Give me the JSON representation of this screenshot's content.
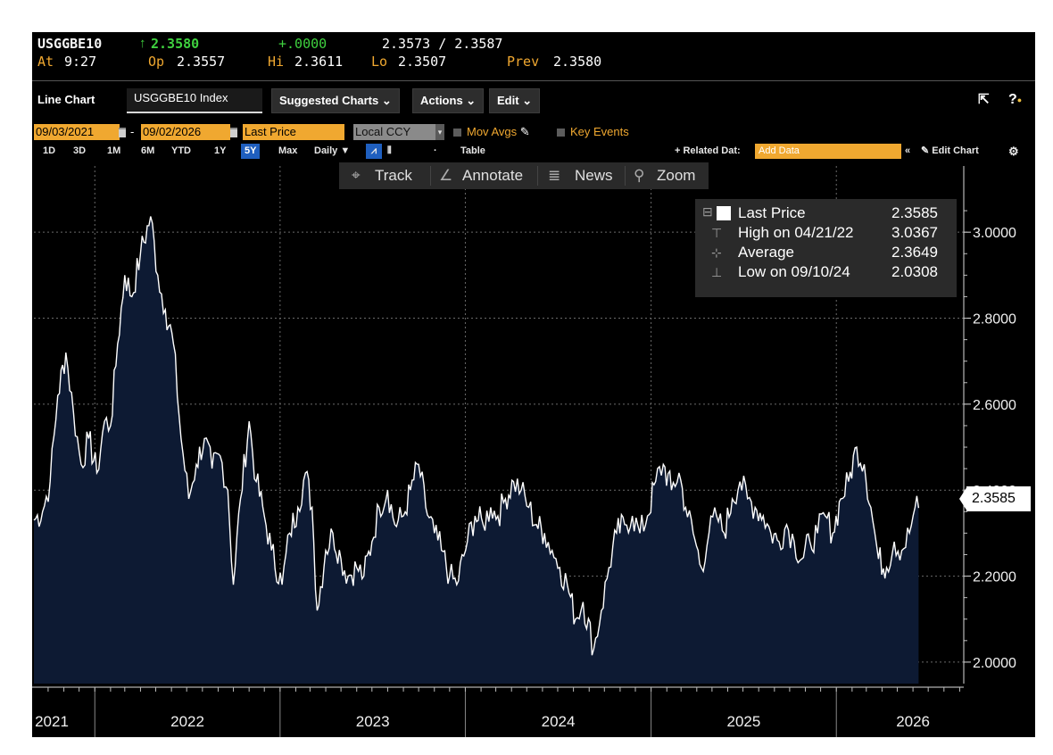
{
  "quote": {
    "ticker": "USGGBE10",
    "last_arrow": "↑",
    "last": "2.3580",
    "change": "+.0000",
    "bid_ask": "2.3573 / 2.3587",
    "time_label": "At",
    "time": "9:27",
    "open_label": "Op",
    "open": "2.3557",
    "high_label": "Hi",
    "high": "2.3611",
    "low_label": "Lo",
    "low": "2.3507",
    "prev_label": "Prev",
    "prev": "2.3580"
  },
  "toolbar": {
    "chart_type": "Line Chart",
    "index": "USGGBE10 Index",
    "suggested": "Suggested Charts",
    "actions": "Actions",
    "edit": "Edit"
  },
  "daterow": {
    "start": "09/03/2021",
    "dash": "-",
    "end": "09/02/2026",
    "field": "Last Price",
    "currency": "Local CCY",
    "mov_avgs": "Mov Avgs",
    "key_events": "Key Events"
  },
  "ranges": {
    "items": [
      "1D",
      "3D",
      "1M",
      "6M",
      "YTD",
      "1Y",
      "5Y",
      "Max"
    ],
    "selected": "5Y",
    "period": "Daily ▼",
    "table": "Table",
    "related": "+ Related Dat:",
    "add_data_placeholder": "Add Data",
    "edit_chart": "Edit Chart"
  },
  "charttools": {
    "track": "Track",
    "annotate": "Annotate",
    "news": "News",
    "zoom": "Zoom"
  },
  "legend": {
    "last_label": "Last Price",
    "last_value": "2.3585",
    "high_label": "High on 04/21/22",
    "high_value": "3.0367",
    "avg_label": "Average",
    "avg_value": "2.3649",
    "low_label": "Low on 09/10/24",
    "low_value": "2.0308"
  },
  "last_marker": "2.3585",
  "colors": {
    "background": "#000000",
    "area_fill": "#0d1a33",
    "line": "#ffffff",
    "accent": "#f0a830",
    "up": "#3fd13f",
    "selected": "#1f5fbf"
  },
  "chart_data": {
    "type": "area",
    "title": "",
    "xlabel": "",
    "ylabel": "",
    "x_tick_labels": [
      "2021",
      "2022",
      "2023",
      "2024",
      "2025",
      "2026"
    ],
    "y_tick_labels": [
      "2.0000",
      "2.2000",
      "2.4000",
      "2.6000",
      "2.8000",
      "3.0000"
    ],
    "ylim": [
      1.95,
      3.1
    ],
    "xlim": [
      "2021-09-03",
      "2026-09-02"
    ],
    "grid": true,
    "legend_position": "top-right",
    "series": [
      {
        "name": "Last Price",
        "points": [
          [
            "2021-09-03",
            2.33
          ],
          [
            "2021-09-20",
            2.35
          ],
          [
            "2021-10-05",
            2.42
          ],
          [
            "2021-10-20",
            2.62
          ],
          [
            "2021-11-05",
            2.72
          ],
          [
            "2021-11-20",
            2.58
          ],
          [
            "2021-12-05",
            2.46
          ],
          [
            "2021-12-20",
            2.52
          ],
          [
            "2022-01-05",
            2.44
          ],
          [
            "2022-01-20",
            2.56
          ],
          [
            "2022-02-01",
            2.55
          ],
          [
            "2022-02-15",
            2.74
          ],
          [
            "2022-03-01",
            2.9
          ],
          [
            "2022-03-15",
            2.85
          ],
          [
            "2022-04-01",
            2.95
          ],
          [
            "2022-04-21",
            3.0367
          ],
          [
            "2022-05-05",
            2.9
          ],
          [
            "2022-05-20",
            2.82
          ],
          [
            "2022-06-05",
            2.74
          ],
          [
            "2022-06-20",
            2.52
          ],
          [
            "2022-07-05",
            2.38
          ],
          [
            "2022-07-20",
            2.46
          ],
          [
            "2022-08-05",
            2.52
          ],
          [
            "2022-08-20",
            2.45
          ],
          [
            "2022-09-05",
            2.48
          ],
          [
            "2022-09-20",
            2.4
          ],
          [
            "2022-10-01",
            2.18
          ],
          [
            "2022-10-15",
            2.38
          ],
          [
            "2022-11-01",
            2.56
          ],
          [
            "2022-11-15",
            2.42
          ],
          [
            "2022-12-01",
            2.34
          ],
          [
            "2022-12-15",
            2.26
          ],
          [
            "2023-01-05",
            2.18
          ],
          [
            "2023-01-20",
            2.3
          ],
          [
            "2023-02-05",
            2.36
          ],
          [
            "2023-02-20",
            2.44
          ],
          [
            "2023-03-05",
            2.36
          ],
          [
            "2023-03-15",
            2.12
          ],
          [
            "2023-04-01",
            2.26
          ],
          [
            "2023-04-15",
            2.3
          ],
          [
            "2023-05-01",
            2.24
          ],
          [
            "2023-05-15",
            2.2
          ],
          [
            "2023-06-01",
            2.22
          ],
          [
            "2023-06-15",
            2.2
          ],
          [
            "2023-07-01",
            2.28
          ],
          [
            "2023-07-15",
            2.36
          ],
          [
            "2023-08-01",
            2.4
          ],
          [
            "2023-08-15",
            2.32
          ],
          [
            "2023-09-01",
            2.34
          ],
          [
            "2023-09-15",
            2.4
          ],
          [
            "2023-10-01",
            2.46
          ],
          [
            "2023-10-15",
            2.36
          ],
          [
            "2023-11-01",
            2.3
          ],
          [
            "2023-11-15",
            2.26
          ],
          [
            "2023-12-01",
            2.2
          ],
          [
            "2023-12-15",
            2.18
          ],
          [
            "2024-01-05",
            2.28
          ],
          [
            "2024-01-20",
            2.34
          ],
          [
            "2024-02-05",
            2.32
          ],
          [
            "2024-02-20",
            2.36
          ],
          [
            "2024-03-05",
            2.34
          ],
          [
            "2024-03-20",
            2.38
          ],
          [
            "2024-04-05",
            2.42
          ],
          [
            "2024-04-20",
            2.4
          ],
          [
            "2024-05-05",
            2.36
          ],
          [
            "2024-05-20",
            2.32
          ],
          [
            "2024-06-05",
            2.3
          ],
          [
            "2024-06-20",
            2.26
          ],
          [
            "2024-07-05",
            2.22
          ],
          [
            "2024-07-20",
            2.18
          ],
          [
            "2024-08-05",
            2.1
          ],
          [
            "2024-08-20",
            2.14
          ],
          [
            "2024-09-10",
            2.0308
          ],
          [
            "2024-09-25",
            2.12
          ],
          [
            "2024-10-10",
            2.22
          ],
          [
            "2024-10-25",
            2.3
          ],
          [
            "2024-11-10",
            2.32
          ],
          [
            "2024-11-25",
            2.34
          ],
          [
            "2024-12-10",
            2.3
          ],
          [
            "2024-12-25",
            2.34
          ],
          [
            "2025-01-10",
            2.42
          ],
          [
            "2025-01-25",
            2.46
          ],
          [
            "2025-02-10",
            2.4
          ],
          [
            "2025-02-25",
            2.44
          ],
          [
            "2025-03-10",
            2.36
          ],
          [
            "2025-03-25",
            2.3
          ],
          [
            "2025-04-10",
            2.22
          ],
          [
            "2025-04-25",
            2.3
          ],
          [
            "2025-05-10",
            2.34
          ],
          [
            "2025-05-25",
            2.3
          ],
          [
            "2025-06-10",
            2.38
          ],
          [
            "2025-06-25",
            2.42
          ],
          [
            "2025-07-10",
            2.38
          ],
          [
            "2025-07-25",
            2.36
          ],
          [
            "2025-08-10",
            2.34
          ],
          [
            "2025-08-25",
            2.3
          ],
          [
            "2025-09-10",
            2.28
          ],
          [
            "2025-09-25",
            2.32
          ],
          [
            "2025-10-10",
            2.28
          ],
          [
            "2025-10-25",
            2.24
          ],
          [
            "2025-11-10",
            2.28
          ],
          [
            "2025-11-25",
            2.3
          ],
          [
            "2025-12-10",
            2.34
          ],
          [
            "2025-12-25",
            2.3
          ],
          [
            "2026-01-10",
            2.38
          ],
          [
            "2026-01-25",
            2.42
          ],
          [
            "2026-02-10",
            2.5
          ],
          [
            "2026-02-25",
            2.46
          ],
          [
            "2026-03-10",
            2.36
          ],
          [
            "2026-03-25",
            2.24
          ],
          [
            "2026-04-10",
            2.22
          ],
          [
            "2026-04-25",
            2.28
          ],
          [
            "2026-05-10",
            2.26
          ],
          [
            "2026-05-25",
            2.3
          ],
          [
            "2026-06-05",
            2.36
          ],
          [
            "2026-06-12",
            2.3585
          ]
        ]
      }
    ]
  }
}
